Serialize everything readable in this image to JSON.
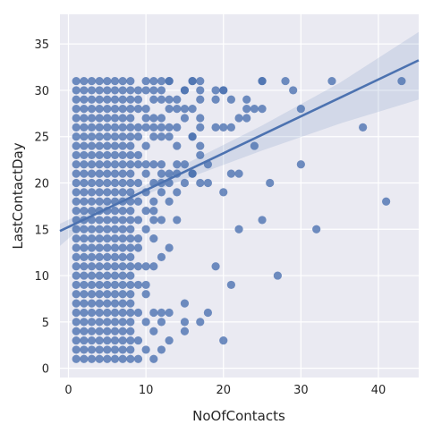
{
  "chart_data": {
    "type": "scatter",
    "title": "",
    "xlabel": "NoOfContacts",
    "ylabel": "LastContactDay",
    "xlim": [
      -1.1,
      45.2
    ],
    "ylim": [
      -1.0,
      38.2
    ],
    "xticks": [
      0,
      10,
      20,
      30,
      40
    ],
    "yticks": [
      0,
      5,
      10,
      15,
      20,
      25,
      30,
      35
    ],
    "grid": true,
    "colors": {
      "background": "#EAEAF2",
      "points": "#4C72B0",
      "regression": "#4C72B0",
      "band": "#4C72B0"
    },
    "regression": {
      "intercept": 15.25,
      "slope": 0.398,
      "band": [
        [
          -1.1,
          13.2,
          15.6
        ],
        [
          3,
          16.2,
          17.2
        ],
        [
          8,
          18.1,
          18.9
        ],
        [
          15,
          20.4,
          22.0
        ],
        [
          25,
          23.5,
          26.2
        ],
        [
          35,
          26.4,
          30.8
        ],
        [
          45.2,
          29.0,
          36.3
        ]
      ]
    },
    "dense_region": {
      "x_range": [
        1,
        8
      ],
      "y_range": [
        1,
        31
      ]
    },
    "points": [
      [
        9,
        1
      ],
      [
        10,
        2
      ],
      [
        11,
        1
      ],
      [
        12,
        2
      ],
      [
        13,
        3
      ],
      [
        15,
        4
      ],
      [
        9,
        3
      ],
      [
        10,
        5
      ],
      [
        11,
        4
      ],
      [
        12,
        5
      ],
      [
        13,
        6
      ],
      [
        15,
        5
      ],
      [
        17,
        5
      ],
      [
        18,
        6
      ],
      [
        20,
        3
      ],
      [
        9,
        6
      ],
      [
        10,
        8
      ],
      [
        11,
        6
      ],
      [
        12,
        6
      ],
      [
        15,
        7
      ],
      [
        9,
        9
      ],
      [
        10,
        9
      ],
      [
        11,
        11
      ],
      [
        12,
        12
      ],
      [
        13,
        13
      ],
      [
        19,
        11
      ],
      [
        21,
        9
      ],
      [
        27,
        10
      ],
      [
        9,
        11
      ],
      [
        10,
        11
      ],
      [
        9,
        13
      ],
      [
        10,
        15
      ],
      [
        11,
        14
      ],
      [
        12,
        16
      ],
      [
        14,
        16
      ],
      [
        22,
        15
      ],
      [
        25,
        16
      ],
      [
        32,
        15
      ],
      [
        9,
        14
      ],
      [
        11,
        16
      ],
      [
        9,
        16
      ],
      [
        10,
        17
      ],
      [
        11,
        17
      ],
      [
        12,
        19
      ],
      [
        13,
        18
      ],
      [
        9,
        18
      ],
      [
        10,
        19
      ],
      [
        11,
        18
      ],
      [
        12,
        20
      ],
      [
        13,
        20
      ],
      [
        14,
        19
      ],
      [
        15,
        20
      ],
      [
        16,
        21
      ],
      [
        17,
        20
      ],
      [
        18,
        20
      ],
      [
        20,
        19
      ],
      [
        9,
        20
      ],
      [
        10,
        21
      ],
      [
        11,
        20
      ],
      [
        12,
        21
      ],
      [
        13,
        21
      ],
      [
        14,
        21
      ],
      [
        15,
        22
      ],
      [
        16,
        21
      ],
      [
        17,
        23
      ],
      [
        18,
        22
      ],
      [
        21,
        21
      ],
      [
        22,
        21
      ],
      [
        26,
        20
      ],
      [
        30,
        22
      ],
      [
        41,
        18
      ],
      [
        9,
        22
      ],
      [
        10,
        22
      ],
      [
        11,
        22
      ],
      [
        12,
        22
      ],
      [
        14,
        22
      ],
      [
        16,
        25
      ],
      [
        17,
        24
      ],
      [
        19,
        26
      ],
      [
        24,
        24
      ],
      [
        9,
        23
      ],
      [
        10,
        24
      ],
      [
        11,
        25
      ],
      [
        12,
        25
      ],
      [
        13,
        25
      ],
      [
        14,
        24
      ],
      [
        9,
        25
      ],
      [
        10,
        26
      ],
      [
        11,
        26
      ],
      [
        12,
        26
      ],
      [
        13,
        26
      ],
      [
        14,
        26
      ],
      [
        15,
        27
      ],
      [
        16,
        25
      ],
      [
        17,
        26
      ],
      [
        20,
        26
      ],
      [
        21,
        26
      ],
      [
        22,
        27
      ],
      [
        23,
        27
      ],
      [
        9,
        26
      ],
      [
        10,
        27
      ],
      [
        11,
        27
      ],
      [
        12,
        27
      ],
      [
        13,
        28
      ],
      [
        14,
        28
      ],
      [
        15,
        28
      ],
      [
        16,
        28
      ],
      [
        17,
        27
      ],
      [
        23,
        28
      ],
      [
        24,
        28
      ],
      [
        25,
        28
      ],
      [
        30,
        28
      ],
      [
        38,
        26
      ],
      [
        9,
        28
      ],
      [
        10,
        28
      ],
      [
        11,
        29
      ],
      [
        12,
        29
      ],
      [
        13,
        29
      ],
      [
        14,
        29
      ],
      [
        15,
        30
      ],
      [
        16,
        31
      ],
      [
        17,
        29
      ],
      [
        19,
        29
      ],
      [
        21,
        29
      ],
      [
        23,
        29
      ],
      [
        9,
        29
      ],
      [
        10,
        30
      ],
      [
        11,
        30
      ],
      [
        12,
        30
      ],
      [
        13,
        31
      ],
      [
        15,
        30
      ],
      [
        17,
        30
      ],
      [
        19,
        30
      ],
      [
        20,
        30
      ],
      [
        25,
        31
      ],
      [
        28,
        31
      ],
      [
        29,
        30
      ],
      [
        9,
        30
      ],
      [
        10,
        31
      ],
      [
        11,
        31
      ],
      [
        12,
        31
      ],
      [
        13,
        31
      ],
      [
        16,
        31
      ],
      [
        17,
        31
      ],
      [
        20,
        30
      ],
      [
        25,
        31
      ],
      [
        34,
        31
      ],
      [
        43,
        31
      ]
    ]
  }
}
